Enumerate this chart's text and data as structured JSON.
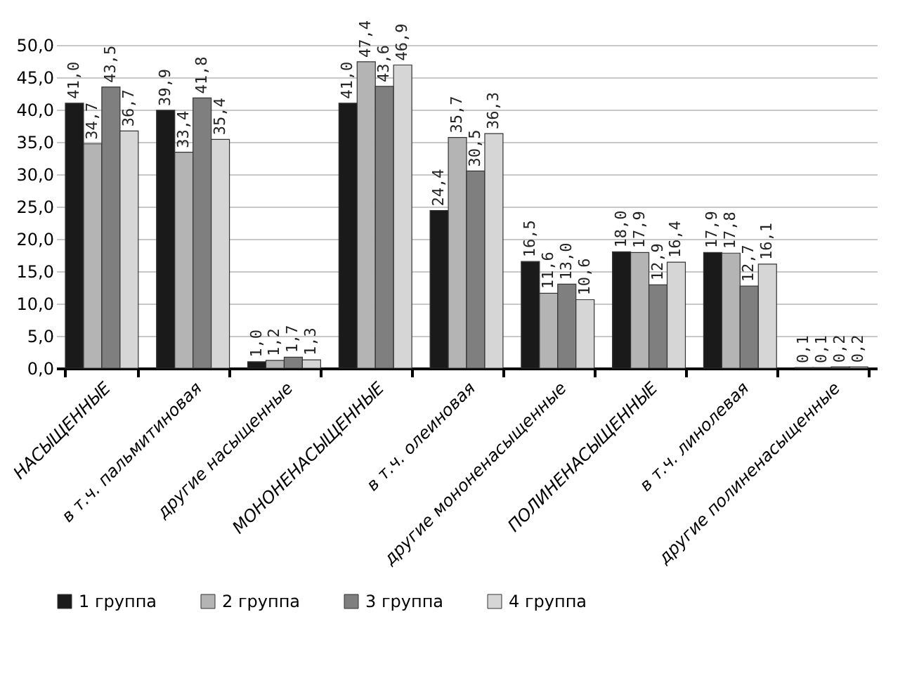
{
  "chart_data": {
    "type": "bar",
    "categories": [
      "НАСЫЩЕННЫЕ",
      "в т.ч. пальмитиновая",
      "другие насыщенные",
      "МОНОНЕНАСЫЩЕННЫЕ",
      "в т.ч. олеиновая",
      "другие мононенасыщенные",
      "ПОЛИНЕНАСЫЩЕННЫЕ",
      "в т.ч. линолевая",
      "другие полиненасыщенные"
    ],
    "series": [
      {
        "name": "1 группа",
        "color": "#1a1a1a",
        "values": [
          41.0,
          39.9,
          1.0,
          41.0,
          24.4,
          16.5,
          18.0,
          17.9,
          0.1
        ],
        "value_labels": [
          "41,0",
          "39,9",
          "1,0",
          "41,0",
          "24,4",
          "16,5",
          "18,0",
          "17,9",
          "0,1"
        ]
      },
      {
        "name": "2 группа",
        "color": "#b4b4b4",
        "values": [
          34.7,
          33.4,
          1.2,
          47.4,
          35.7,
          11.6,
          17.9,
          17.8,
          0.1
        ],
        "value_labels": [
          "34,7",
          "33,4",
          "1,2",
          "47,4",
          "35,7",
          "11,6",
          "17,9",
          "17,8",
          "0,1"
        ]
      },
      {
        "name": "3 группа",
        "color": "#7f7f7f",
        "values": [
          43.5,
          41.8,
          1.7,
          43.6,
          30.5,
          13.0,
          12.9,
          12.7,
          0.2
        ],
        "value_labels": [
          "43,5",
          "41,8",
          "1,7",
          "43,6",
          "30,5",
          "13,0",
          "12,9",
          "12,7",
          "0,2"
        ]
      },
      {
        "name": "4 группа",
        "color": "#d6d6d6",
        "values": [
          36.7,
          35.4,
          1.3,
          46.9,
          36.3,
          10.6,
          16.4,
          16.1,
          0.2
        ],
        "value_labels": [
          "36,7",
          "35,4",
          "1,3",
          "46,9",
          "36,3",
          "10,6",
          "16,4",
          "16,1",
          "0,2"
        ]
      }
    ],
    "ylim": [
      0,
      50
    ],
    "yticks": [
      {
        "value": 0,
        "label": "0,0"
      },
      {
        "value": 5,
        "label": "5,0"
      },
      {
        "value": 10,
        "label": "10,0"
      },
      {
        "value": 15,
        "label": "15,0"
      },
      {
        "value": 20,
        "label": "20,0"
      },
      {
        "value": 25,
        "label": "25,0"
      },
      {
        "value": 30,
        "label": "30,0"
      },
      {
        "value": 35,
        "label": "35,0"
      },
      {
        "value": 40,
        "label": "40,0"
      },
      {
        "value": 45,
        "label": "45,0"
      },
      {
        "value": 50,
        "label": "50,0"
      }
    ],
    "grid": "y",
    "legend": "bottom"
  }
}
